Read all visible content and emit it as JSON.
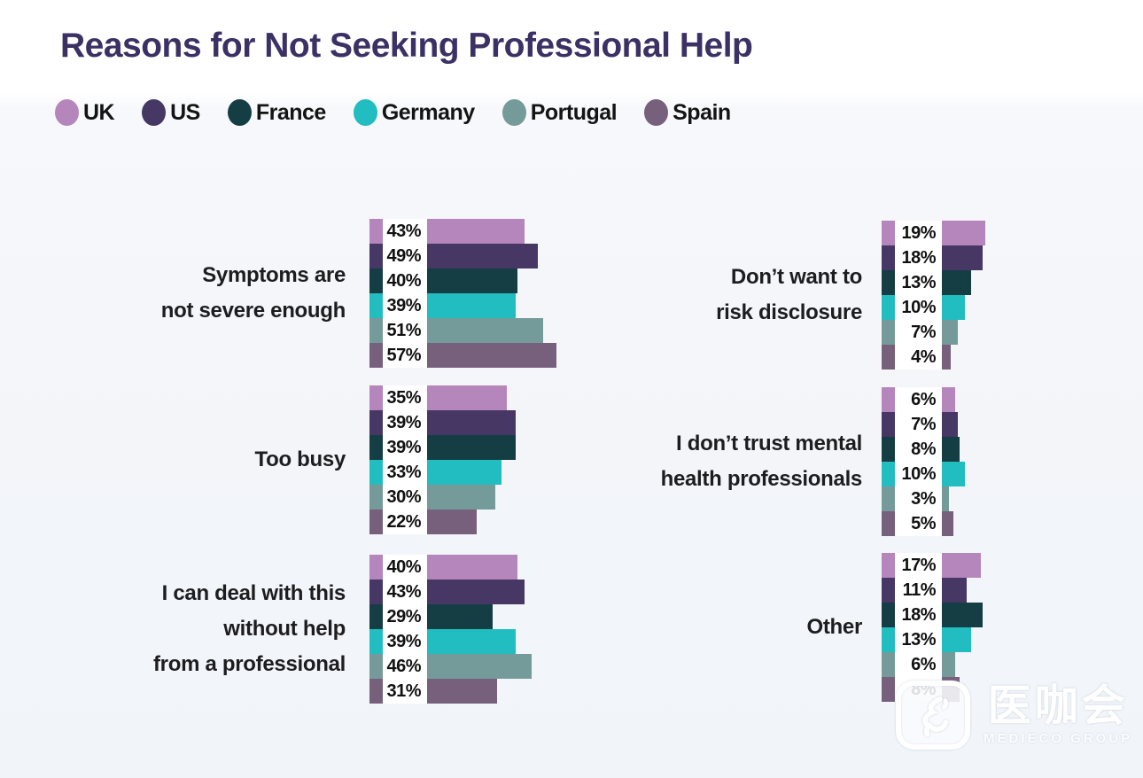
{
  "title": "Reasons for Not Seeking Professional Help",
  "legend": [
    {
      "label": "UK",
      "color": "#b586bc"
    },
    {
      "label": "US",
      "color": "#463765"
    },
    {
      "label": "France",
      "color": "#143e44"
    },
    {
      "label": "Germany",
      "color": "#21bdc0"
    },
    {
      "label": "Portugal",
      "color": "#749b9a"
    },
    {
      "label": "Spain",
      "color": "#77607c"
    }
  ],
  "chart_data": {
    "type": "bar",
    "orientation": "horizontal",
    "unit": "%",
    "title": "Reasons for Not Seeking Professional Help",
    "legend_position": "top",
    "axis": "none",
    "value_labels": "left-of-bar",
    "series": [
      "UK",
      "US",
      "France",
      "Germany",
      "Portugal",
      "Spain"
    ],
    "series_colors": [
      "#b586bc",
      "#463765",
      "#143e44",
      "#21bdc0",
      "#749b9a",
      "#77607c"
    ],
    "groups": [
      {
        "category": "Symptoms are not severe enough",
        "label_lines": [
          "Symptoms are",
          "not severe enough"
        ],
        "values": [
          43,
          49,
          40,
          39,
          51,
          57
        ],
        "display": [
          "43%",
          "49%",
          "40%",
          "39%",
          "51%",
          "57%"
        ]
      },
      {
        "category": "Too busy",
        "label_lines": [
          "Too busy"
        ],
        "values": [
          35,
          39,
          39,
          33,
          30,
          22
        ],
        "display": [
          "35%",
          "39%",
          "39%",
          "33%",
          "30%",
          "22%"
        ]
      },
      {
        "category": "I can deal with this without help from a professional",
        "label_lines": [
          "I can deal with this",
          "without help",
          "from a professional"
        ],
        "values": [
          40,
          43,
          29,
          39,
          46,
          31
        ],
        "display": [
          "40%",
          "43%",
          "29%",
          "39%",
          "46%",
          "31%"
        ]
      },
      {
        "category": "Don’t want to risk disclosure",
        "label_lines": [
          "Don’t want to",
          "risk disclosure"
        ],
        "values": [
          19,
          18,
          13,
          10,
          7,
          4
        ],
        "display": [
          "19%",
          "18%",
          "13%",
          "10%",
          "7%",
          "4%"
        ]
      },
      {
        "category": "I don’t trust mental health professionals",
        "label_lines": [
          "I don’t trust mental",
          "health professionals"
        ],
        "values": [
          6,
          7,
          8,
          10,
          3,
          5
        ],
        "display": [
          "6%",
          "7%",
          "8%",
          "10%",
          "3%",
          "5%"
        ]
      },
      {
        "category": "Other",
        "label_lines": [
          "Other"
        ],
        "values": [
          17,
          11,
          18,
          13,
          6,
          8
        ],
        "display": [
          "17%",
          "11%",
          "18%",
          "13%",
          "6%",
          "8%"
        ]
      }
    ]
  },
  "watermark": {
    "logo_text": "医咖会",
    "subtext": "MEDIECO GROUP"
  }
}
